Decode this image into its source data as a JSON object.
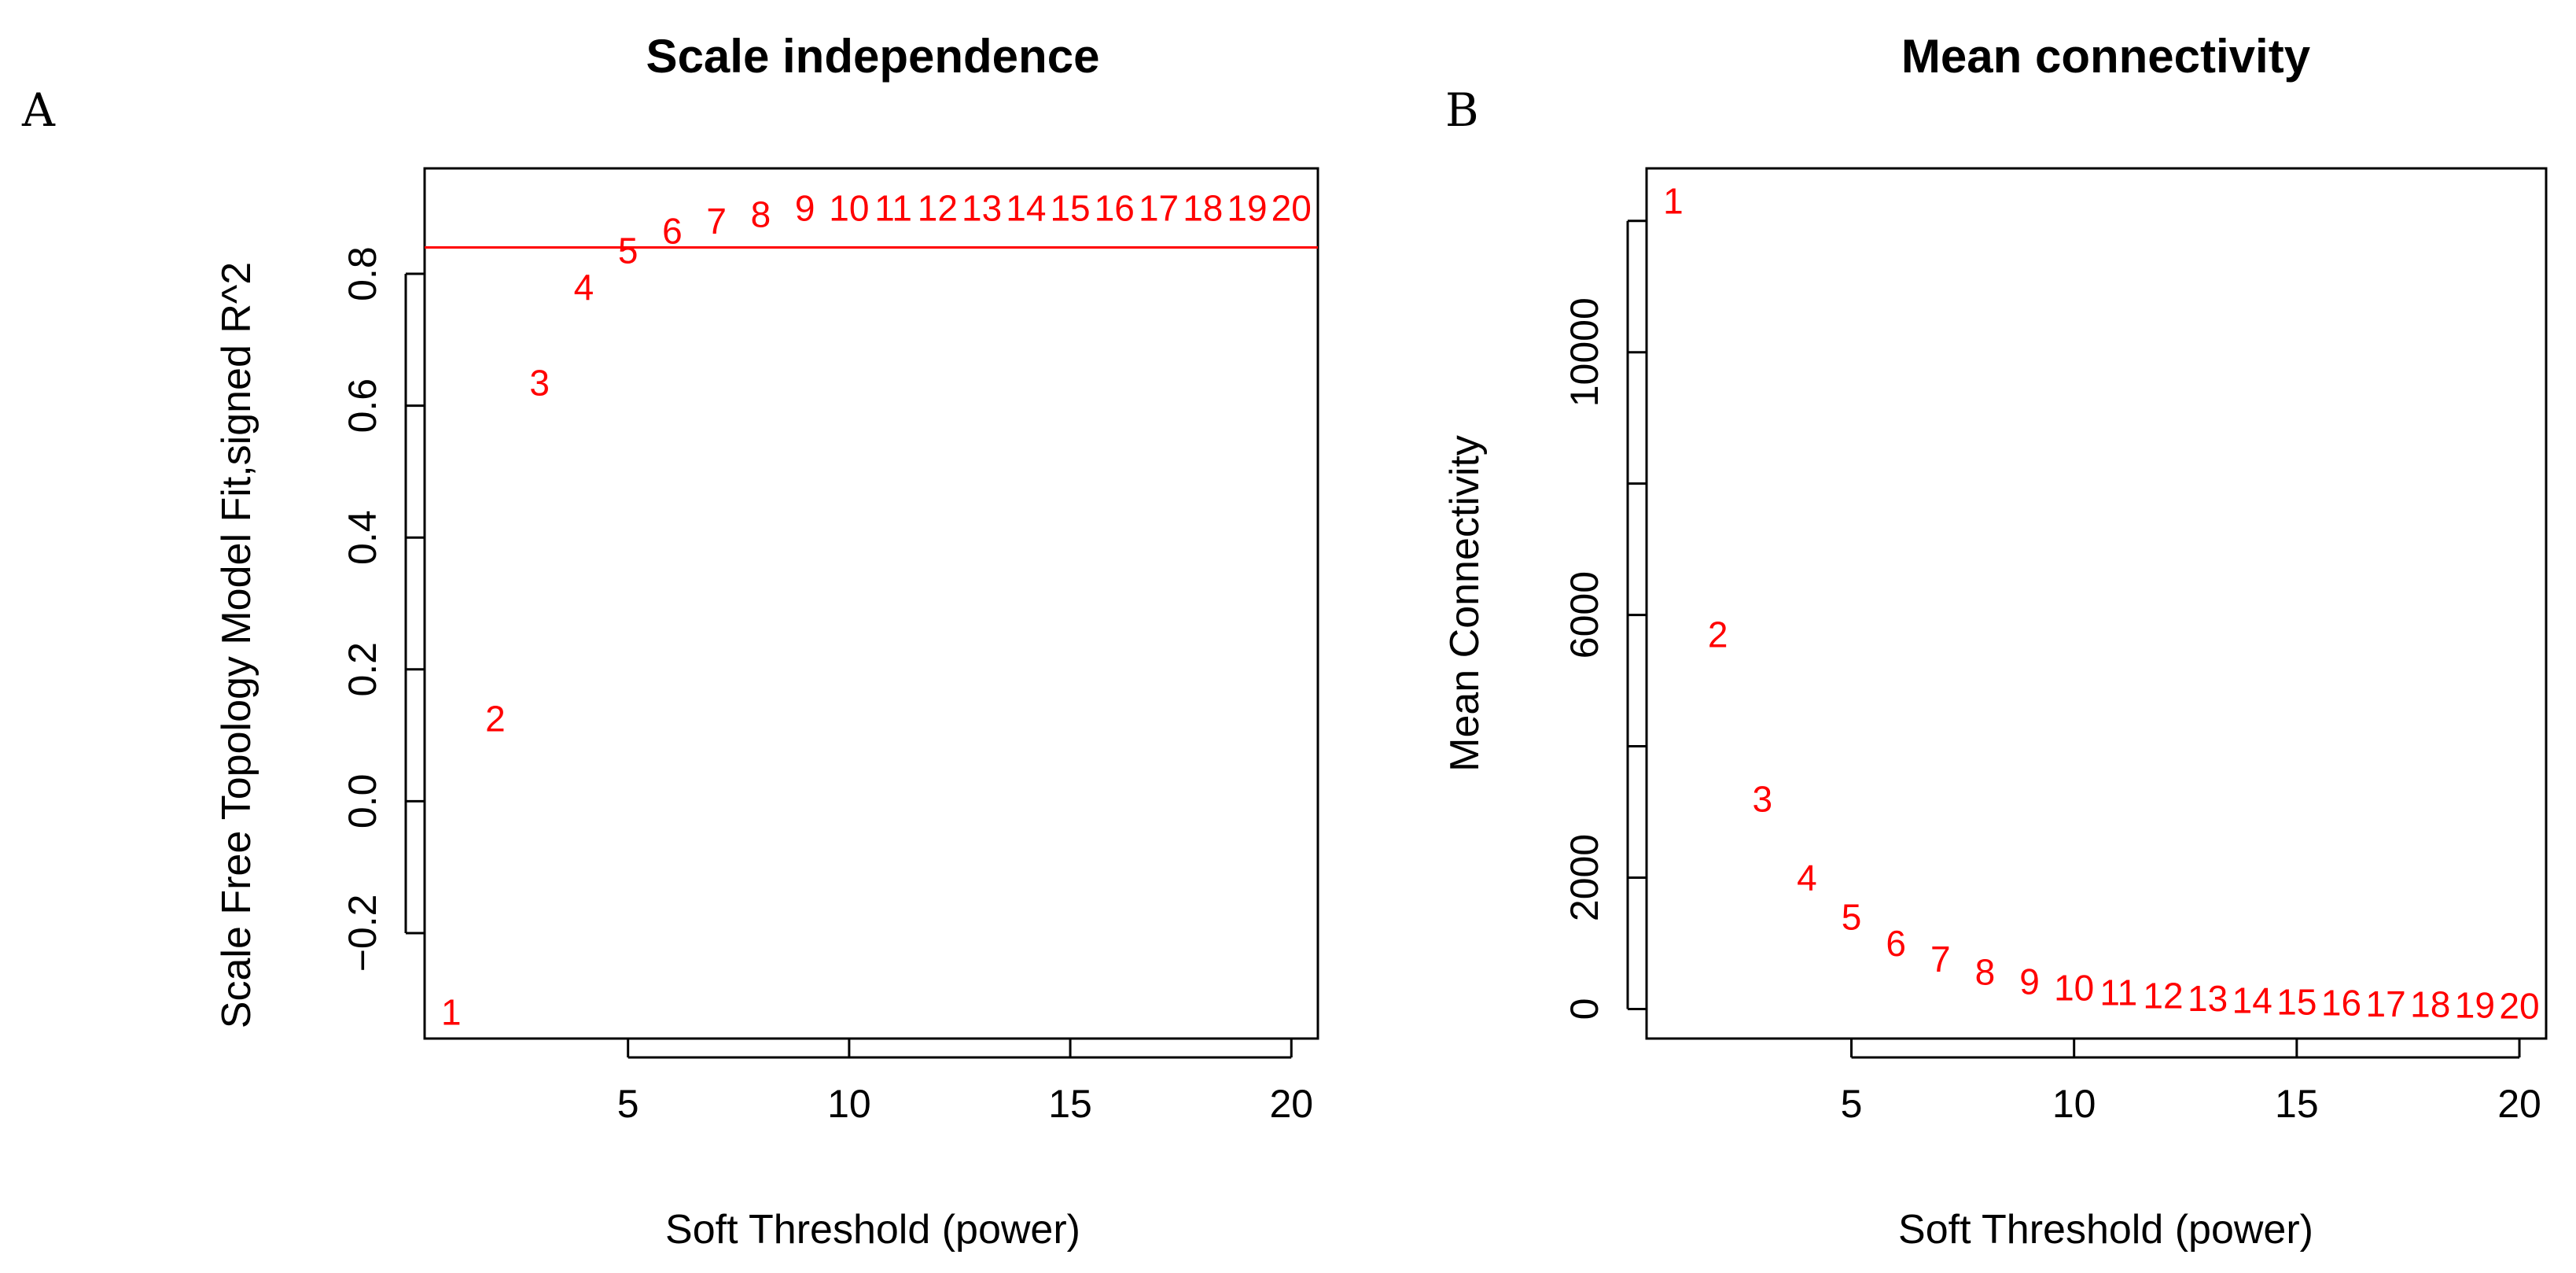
{
  "colors": {
    "points": "#ff0000",
    "cutoff_line": "#ff0000",
    "axes": "#000000"
  },
  "panels": [
    {
      "letter": "A"
    },
    {
      "letter": "B"
    }
  ],
  "chart_data": [
    {
      "type": "scatter",
      "panel": "A",
      "title": "Scale independence",
      "xlabel": "Soft Threshold (power)",
      "ylabel": "Scale Free Topology Model Fit,signed R^2",
      "xlim": [
        0.4,
        20.6
      ],
      "ylim": [
        -0.36,
        0.96
      ],
      "xticks": [
        5,
        10,
        15,
        20
      ],
      "xtick_labels": [
        "5",
        "10",
        "15",
        "20"
      ],
      "yticks": [
        -0.2,
        0.0,
        0.2,
        0.4,
        0.6,
        0.8
      ],
      "ytick_labels": [
        "−0.2",
        "0.0",
        "0.2",
        "0.4",
        "0.6",
        "0.8"
      ],
      "hline": 0.84,
      "marker": "text-labels",
      "points": [
        {
          "x": 1,
          "y": -0.32,
          "label": "1"
        },
        {
          "x": 2,
          "y": 0.125,
          "label": "2"
        },
        {
          "x": 3,
          "y": 0.635,
          "label": "3"
        },
        {
          "x": 4,
          "y": 0.78,
          "label": "4"
        },
        {
          "x": 5,
          "y": 0.835,
          "label": "5"
        },
        {
          "x": 6,
          "y": 0.865,
          "label": "6"
        },
        {
          "x": 7,
          "y": 0.88,
          "label": "7"
        },
        {
          "x": 8,
          "y": 0.89,
          "label": "8"
        },
        {
          "x": 9,
          "y": 0.9,
          "label": "9"
        },
        {
          "x": 10,
          "y": 0.9,
          "label": "10"
        },
        {
          "x": 11,
          "y": 0.9,
          "label": "11"
        },
        {
          "x": 12,
          "y": 0.9,
          "label": "12"
        },
        {
          "x": 13,
          "y": 0.9,
          "label": "13"
        },
        {
          "x": 14,
          "y": 0.9,
          "label": "14"
        },
        {
          "x": 15,
          "y": 0.9,
          "label": "15"
        },
        {
          "x": 16,
          "y": 0.9,
          "label": "16"
        },
        {
          "x": 17,
          "y": 0.9,
          "label": "17"
        },
        {
          "x": 18,
          "y": 0.9,
          "label": "18"
        },
        {
          "x": 19,
          "y": 0.9,
          "label": "19"
        },
        {
          "x": 20,
          "y": 0.9,
          "label": "20"
        }
      ]
    },
    {
      "type": "scatter",
      "panel": "B",
      "title": "Mean connectivity",
      "xlabel": "Soft Threshold (power)",
      "ylabel": "Mean Connectivity",
      "xlim": [
        0.4,
        20.6
      ],
      "ylim": [
        -450,
        12800
      ],
      "xticks": [
        5,
        10,
        15,
        20
      ],
      "xtick_labels": [
        "5",
        "10",
        "15",
        "20"
      ],
      "yticks": [
        0,
        2000,
        4000,
        6000,
        8000,
        10000,
        12000
      ],
      "ytick_labels": [
        "0",
        "2000",
        "",
        "6000",
        "",
        "10000",
        ""
      ],
      "marker": "text-labels",
      "points": [
        {
          "x": 1,
          "y": 12300,
          "label": "1"
        },
        {
          "x": 2,
          "y": 5700,
          "label": "2"
        },
        {
          "x": 3,
          "y": 3200,
          "label": "3"
        },
        {
          "x": 4,
          "y": 2000,
          "label": "4"
        },
        {
          "x": 5,
          "y": 1400,
          "label": "5"
        },
        {
          "x": 6,
          "y": 1000,
          "label": "6"
        },
        {
          "x": 7,
          "y": 760,
          "label": "7"
        },
        {
          "x": 8,
          "y": 560,
          "label": "8"
        },
        {
          "x": 9,
          "y": 420,
          "label": "9"
        },
        {
          "x": 10,
          "y": 320,
          "label": "10"
        },
        {
          "x": 11,
          "y": 250,
          "label": "11"
        },
        {
          "x": 12,
          "y": 200,
          "label": "12"
        },
        {
          "x": 13,
          "y": 160,
          "label": "13"
        },
        {
          "x": 14,
          "y": 130,
          "label": "14"
        },
        {
          "x": 15,
          "y": 110,
          "label": "15"
        },
        {
          "x": 16,
          "y": 95,
          "label": "16"
        },
        {
          "x": 17,
          "y": 80,
          "label": "17"
        },
        {
          "x": 18,
          "y": 70,
          "label": "18"
        },
        {
          "x": 19,
          "y": 60,
          "label": "19"
        },
        {
          "x": 20,
          "y": 50,
          "label": "20"
        }
      ]
    }
  ]
}
